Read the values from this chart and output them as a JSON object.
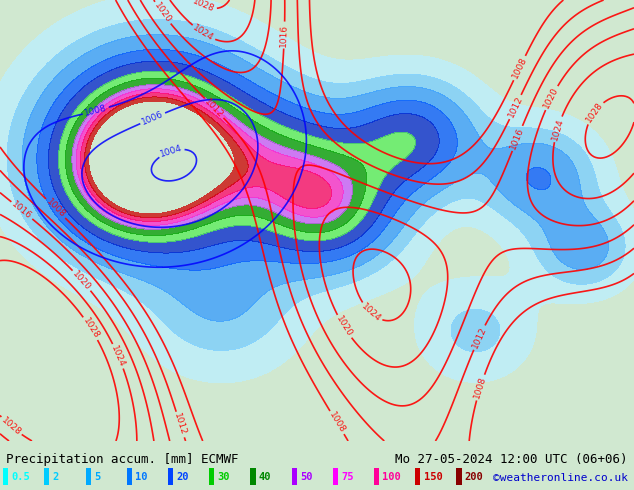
{
  "title_left": "Precipitation accum. [mm] ECMWF",
  "title_right": "Mo 27-05-2024 12:00 UTC (06+06)",
  "credit": "©weatheronline.co.uk",
  "legend_values": [
    "0.5",
    "2",
    "5",
    "10",
    "20",
    "30",
    "40",
    "50",
    "75",
    "100",
    "150",
    "200"
  ],
  "legend_colors": [
    "#00ffff",
    "#00ccff",
    "#00aaff",
    "#0077ff",
    "#0044ff",
    "#00cc00",
    "#008800",
    "#aa00ff",
    "#ff00ff",
    "#ff0099",
    "#cc0000",
    "#880000"
  ],
  "bg_color": "#e8f4e8",
  "fig_bg": "#d0e8d0",
  "bottom_bg": "#e0e0e0",
  "text_color": "#000000",
  "title_fontsize": 9,
  "credit_color": "#0000cc",
  "credit_fontsize": 8
}
